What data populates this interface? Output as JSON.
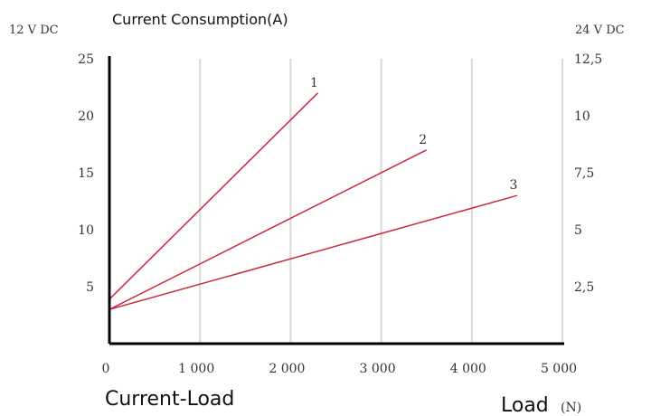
{
  "chart_data": {
    "type": "line",
    "title": "Current Consumption(A)",
    "caption": "Current-Load",
    "xlabel": "Load",
    "xunit": "(N)",
    "left_axis_unit": "12 V DC",
    "right_axis_unit": "24 V DC",
    "xlim": [
      0,
      5000
    ],
    "ylim": [
      0,
      25
    ],
    "x_ticks": [
      {
        "value": 0,
        "label": "0"
      },
      {
        "value": 1000,
        "label": "1 000"
      },
      {
        "value": 2000,
        "label": "2 000"
      },
      {
        "value": 3000,
        "label": "3 000"
      },
      {
        "value": 4000,
        "label": "4 000"
      },
      {
        "value": 5000,
        "label": "5 000"
      }
    ],
    "y_ticks_left": [
      {
        "value": 5,
        "label": "5"
      },
      {
        "value": 10,
        "label": "10"
      },
      {
        "value": 15,
        "label": "15"
      },
      {
        "value": 20,
        "label": "20"
      },
      {
        "value": 25,
        "label": "25"
      }
    ],
    "y_ticks_right": [
      {
        "value": 5,
        "label": "2,5"
      },
      {
        "value": 10,
        "label": "5"
      },
      {
        "value": 15,
        "label": "7,5"
      },
      {
        "value": 20,
        "label": "10"
      },
      {
        "value": 25,
        "label": "12,5"
      }
    ],
    "grid": "vertical",
    "line_color": "#c8283c",
    "series": [
      {
        "label": "1",
        "x": [
          0,
          2300
        ],
        "y": [
          3.9,
          22
        ]
      },
      {
        "label": "2",
        "x": [
          0,
          3500
        ],
        "y": [
          3,
          17
        ]
      },
      {
        "label": "3",
        "x": [
          0,
          4500
        ],
        "y": [
          3,
          13
        ]
      }
    ]
  }
}
